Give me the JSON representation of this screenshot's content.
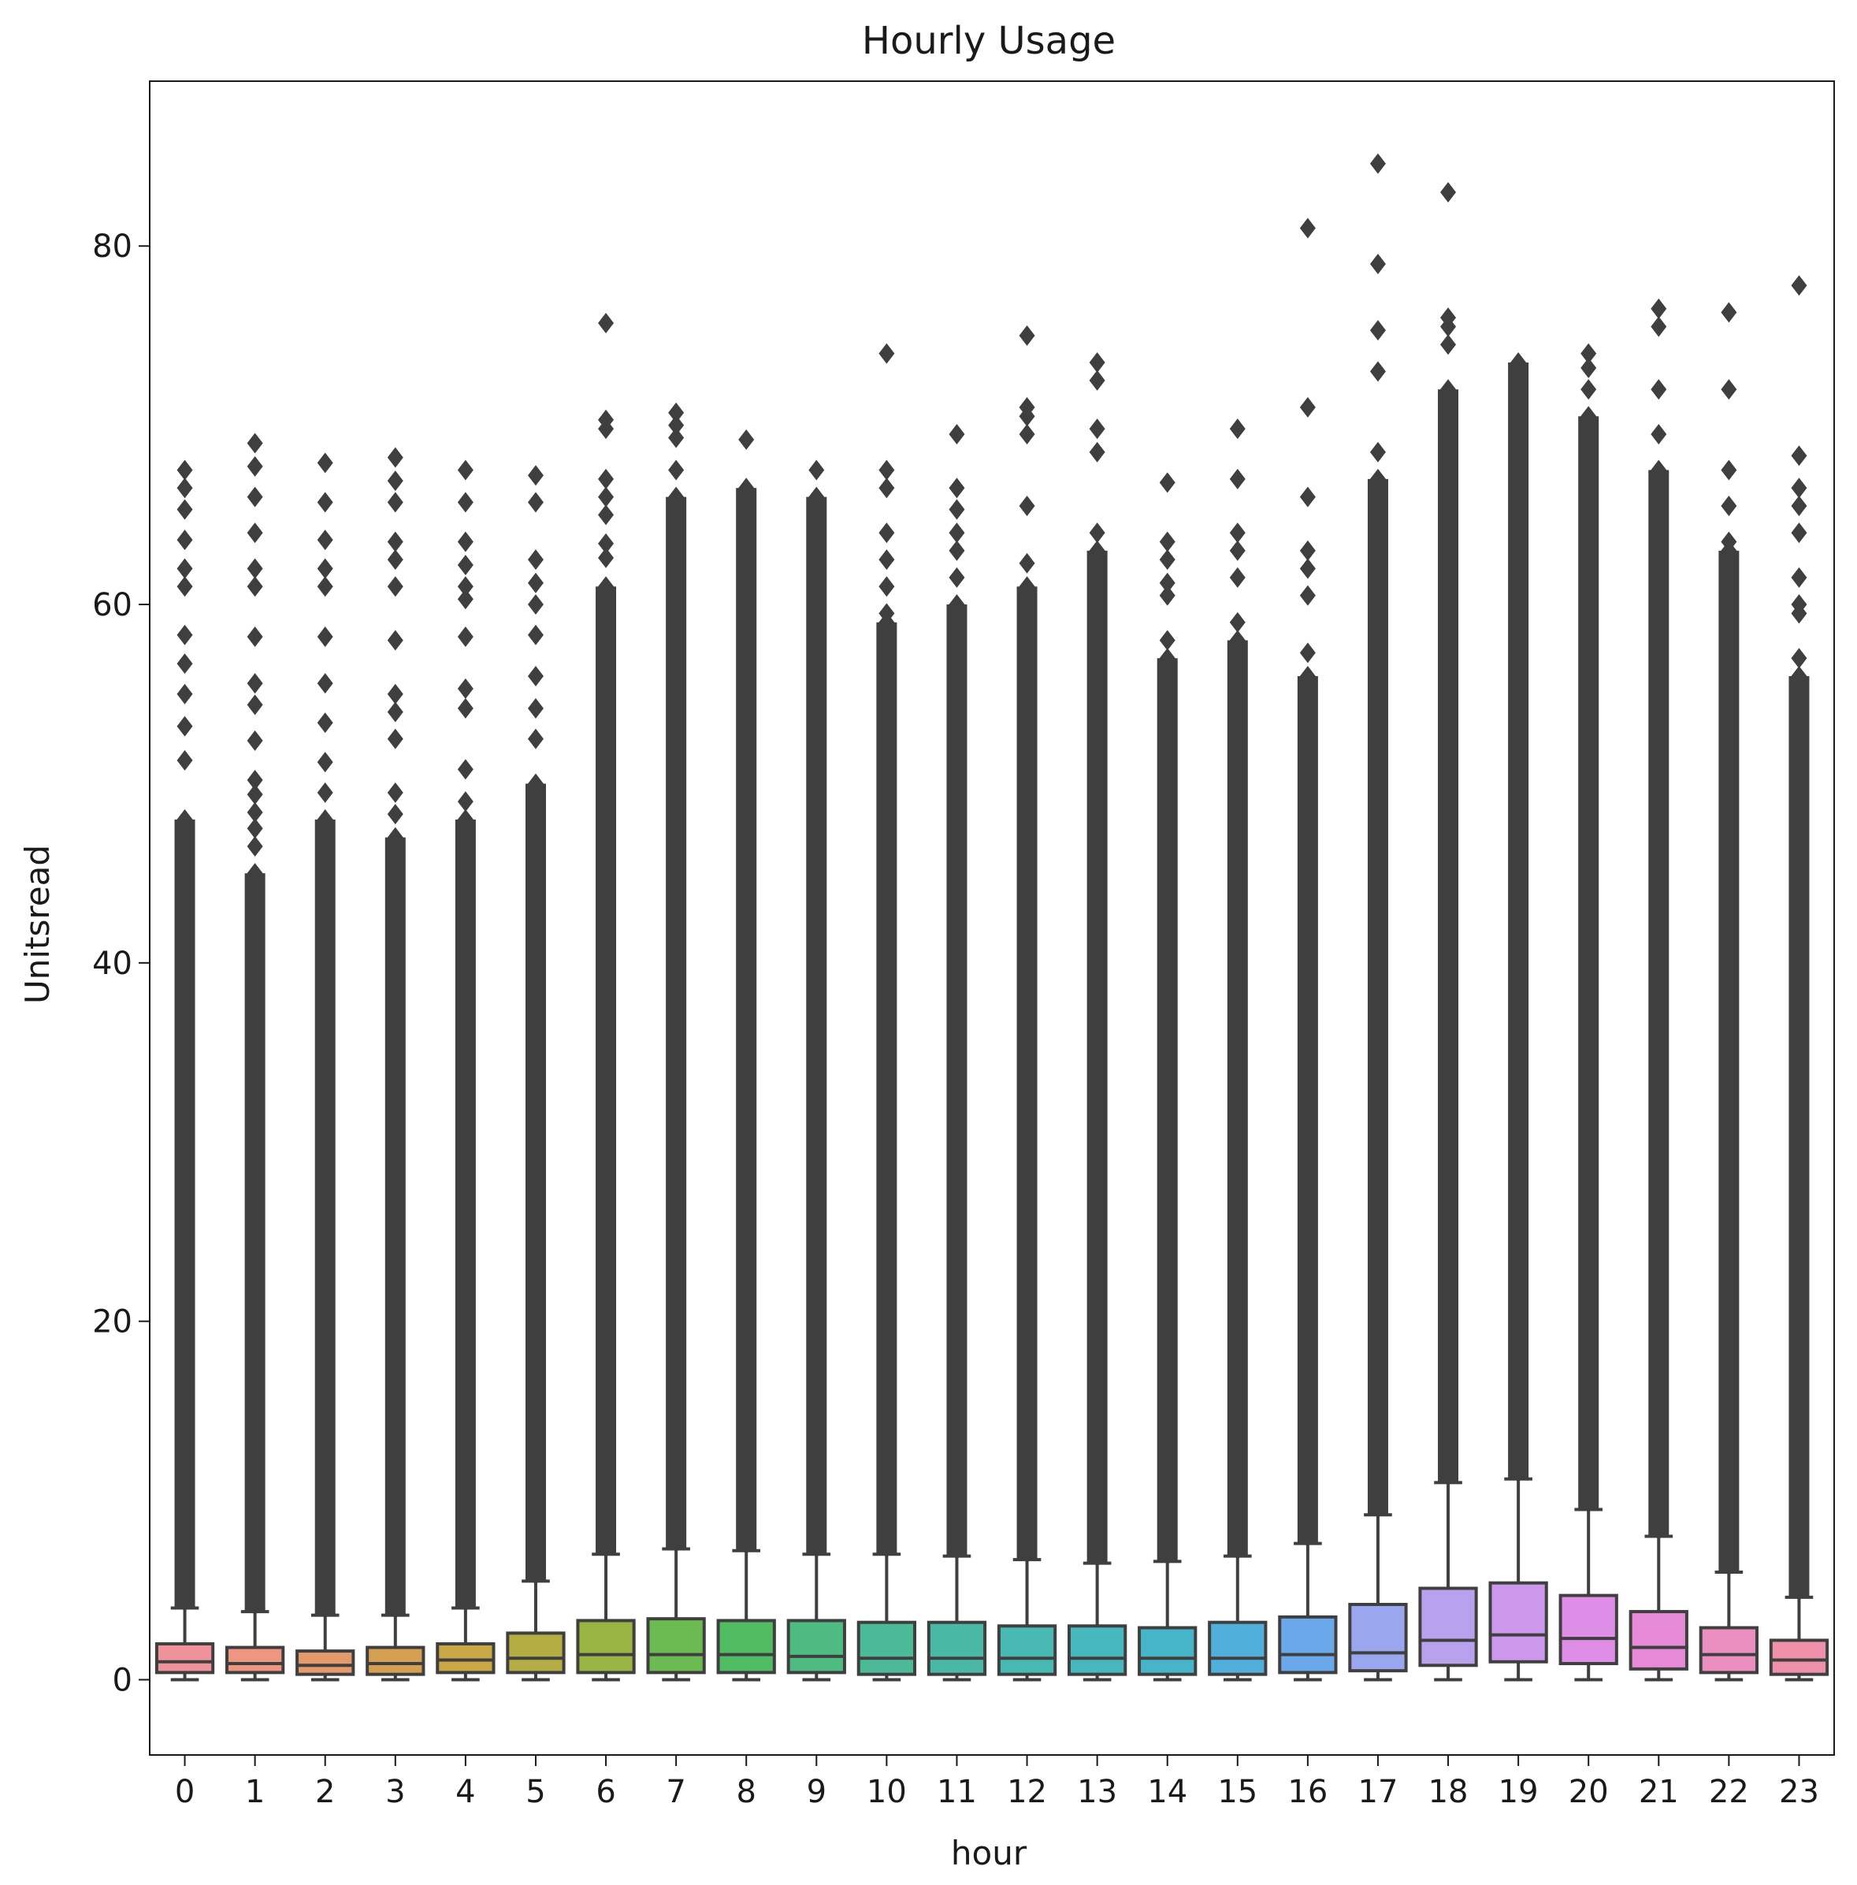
{
  "chart_data": {
    "type": "box",
    "title": "Hourly Usage",
    "xlabel": "hour",
    "ylabel": "Unitsread",
    "ylim": [
      -4.2,
      89.2
    ],
    "yticks": [
      0,
      20,
      40,
      60,
      80
    ],
    "categories": [
      "0",
      "1",
      "2",
      "3",
      "4",
      "5",
      "6",
      "7",
      "8",
      "9",
      "10",
      "11",
      "12",
      "13",
      "14",
      "15",
      "16",
      "17",
      "18",
      "19",
      "20",
      "21",
      "22",
      "23"
    ],
    "colors": [
      "#f0929a",
      "#ee9682",
      "#e49a6a",
      "#d6a052",
      "#c9a845",
      "#b4ad44",
      "#98b541",
      "#6cbb52",
      "#50bd62",
      "#4ebc80",
      "#4bbb97",
      "#49b9a6",
      "#47b8b2",
      "#45b7bd",
      "#46b5c8",
      "#51afdc",
      "#6aa8ea",
      "#9aa6ee",
      "#b8a2ee",
      "#cb98ec",
      "#de8ee6",
      "#e68ad8",
      "#eb8ec0",
      "#ef91aa"
    ],
    "box_stats": [
      {
        "hour": "0",
        "q1": 0.4,
        "median": 1.0,
        "q3": 2.0,
        "whisker_low": 0.0,
        "whisker_high": 4.0,
        "dense_top": 48.0,
        "outliers": [
          51.3,
          53.2,
          55.0,
          56.7,
          58.3,
          61.0,
          62.0,
          63.6,
          65.3,
          66.5,
          67.5
        ]
      },
      {
        "hour": "1",
        "q1": 0.4,
        "median": 0.9,
        "q3": 1.8,
        "whisker_low": 0.0,
        "whisker_high": 3.8,
        "dense_top": 45.0,
        "outliers": [
          46.5,
          47.5,
          48.4,
          49.4,
          50.2,
          52.4,
          54.4,
          55.6,
          58.2,
          61.0,
          62.0,
          64.0,
          66.0,
          67.7,
          69.0
        ]
      },
      {
        "hour": "2",
        "q1": 0.3,
        "median": 0.8,
        "q3": 1.6,
        "whisker_low": 0.0,
        "whisker_high": 3.6,
        "dense_top": 48.0,
        "outliers": [
          49.5,
          51.2,
          53.4,
          55.6,
          58.2,
          61.0,
          62.0,
          63.6,
          65.7,
          67.9
        ]
      },
      {
        "hour": "3",
        "q1": 0.3,
        "median": 0.9,
        "q3": 1.8,
        "whisker_low": 0.0,
        "whisker_high": 3.6,
        "dense_top": 47.0,
        "outliers": [
          48.3,
          49.5,
          52.5,
          54.0,
          55.0,
          58.0,
          61.0,
          62.5,
          63.5,
          65.7,
          66.9,
          68.2
        ]
      },
      {
        "hour": "4",
        "q1": 0.4,
        "median": 1.1,
        "q3": 2.0,
        "whisker_low": 0.0,
        "whisker_high": 4.0,
        "dense_top": 48.0,
        "outliers": [
          49.0,
          50.8,
          54.2,
          55.3,
          58.2,
          60.3,
          61.0,
          62.2,
          63.5,
          65.7,
          67.5
        ]
      },
      {
        "hour": "5",
        "q1": 0.4,
        "median": 1.2,
        "q3": 2.6,
        "whisker_low": 0.0,
        "whisker_high": 5.5,
        "dense_top": 50.0,
        "outliers": [
          52.5,
          54.2,
          56.0,
          58.3,
          60.0,
          61.2,
          62.5,
          65.7,
          67.2
        ]
      },
      {
        "hour": "6",
        "q1": 0.4,
        "median": 1.4,
        "q3": 3.3,
        "whisker_low": 0.0,
        "whisker_high": 7.0,
        "dense_top": 61.0,
        "outliers": [
          62.6,
          63.4,
          65.0,
          66.0,
          67.0,
          69.8,
          70.3,
          75.7
        ]
      },
      {
        "hour": "7",
        "q1": 0.4,
        "median": 1.4,
        "q3": 3.4,
        "whisker_low": 0.0,
        "whisker_high": 7.3,
        "dense_top": 66.0,
        "outliers": [
          67.5,
          69.3,
          70.0,
          70.7
        ]
      },
      {
        "hour": "8",
        "q1": 0.4,
        "median": 1.4,
        "q3": 3.3,
        "whisker_low": 0.0,
        "whisker_high": 7.2,
        "dense_top": 66.5,
        "outliers": [
          69.2
        ]
      },
      {
        "hour": "9",
        "q1": 0.4,
        "median": 1.3,
        "q3": 3.3,
        "whisker_low": 0.0,
        "whisker_high": 7.0,
        "dense_top": 66.0,
        "outliers": [
          67.5
        ]
      },
      {
        "hour": "10",
        "q1": 0.3,
        "median": 1.2,
        "q3": 3.2,
        "whisker_low": 0.0,
        "whisker_high": 7.0,
        "dense_top": 59.0,
        "outliers": [
          59.5,
          61.0,
          62.5,
          64.0,
          66.5,
          67.5,
          74.0
        ]
      },
      {
        "hour": "11",
        "q1": 0.3,
        "median": 1.2,
        "q3": 3.2,
        "whisker_low": 0.0,
        "whisker_high": 6.9,
        "dense_top": 60.0,
        "outliers": [
          61.5,
          63.0,
          64.0,
          65.3,
          66.5,
          69.5
        ]
      },
      {
        "hour": "12",
        "q1": 0.3,
        "median": 1.2,
        "q3": 3.0,
        "whisker_low": 0.0,
        "whisker_high": 6.7,
        "dense_top": 61.0,
        "outliers": [
          62.3,
          65.5,
          69.5,
          70.5,
          71.0,
          75.0
        ]
      },
      {
        "hour": "13",
        "q1": 0.3,
        "median": 1.2,
        "q3": 3.0,
        "whisker_low": 0.0,
        "whisker_high": 6.5,
        "dense_top": 63.0,
        "outliers": [
          64.0,
          68.5,
          69.8,
          72.5,
          73.5
        ]
      },
      {
        "hour": "14",
        "q1": 0.3,
        "median": 1.2,
        "q3": 2.9,
        "whisker_low": 0.0,
        "whisker_high": 6.6,
        "dense_top": 57.0,
        "outliers": [
          58.0,
          60.5,
          61.2,
          62.5,
          63.5,
          66.8
        ]
      },
      {
        "hour": "15",
        "q1": 0.3,
        "median": 1.2,
        "q3": 3.2,
        "whisker_low": 0.0,
        "whisker_high": 6.9,
        "dense_top": 58.0,
        "outliers": [
          59.0,
          61.5,
          63.0,
          64.0,
          67.0,
          69.8
        ]
      },
      {
        "hour": "16",
        "q1": 0.4,
        "median": 1.4,
        "q3": 3.5,
        "whisker_low": 0.0,
        "whisker_high": 7.6,
        "dense_top": 56.0,
        "outliers": [
          57.3,
          60.5,
          62.0,
          63.0,
          66.0,
          71.0,
          81.0
        ]
      },
      {
        "hour": "17",
        "q1": 0.5,
        "median": 1.5,
        "q3": 4.2,
        "whisker_low": 0.0,
        "whisker_high": 9.2,
        "dense_top": 67.0,
        "outliers": [
          68.5,
          73.0,
          75.3,
          79.0,
          84.6
        ]
      },
      {
        "hour": "18",
        "q1": 0.8,
        "median": 2.2,
        "q3": 5.1,
        "whisker_low": 0.0,
        "whisker_high": 11.0,
        "dense_top": 72.0,
        "outliers": [
          74.5,
          75.5,
          76.0,
          83.0
        ]
      },
      {
        "hour": "19",
        "q1": 1.0,
        "median": 2.5,
        "q3": 5.4,
        "whisker_low": 0.0,
        "whisker_high": 11.2,
        "dense_top": 73.5,
        "outliers": []
      },
      {
        "hour": "20",
        "q1": 0.9,
        "median": 2.3,
        "q3": 4.7,
        "whisker_low": 0.0,
        "whisker_high": 9.5,
        "dense_top": 70.5,
        "outliers": [
          72.0,
          73.2,
          74.0
        ]
      },
      {
        "hour": "21",
        "q1": 0.6,
        "median": 1.8,
        "q3": 3.8,
        "whisker_low": 0.0,
        "whisker_high": 8.0,
        "dense_top": 67.5,
        "outliers": [
          69.5,
          72.0,
          75.5,
          76.5
        ]
      },
      {
        "hour": "22",
        "q1": 0.4,
        "median": 1.4,
        "q3": 2.9,
        "whisker_low": 0.0,
        "whisker_high": 6.0,
        "dense_top": 63.0,
        "outliers": [
          63.5,
          65.5,
          67.5,
          72.0,
          76.3
        ]
      },
      {
        "hour": "23",
        "q1": 0.3,
        "median": 1.1,
        "q3": 2.2,
        "whisker_low": 0.0,
        "whisker_high": 4.6,
        "dense_top": 56.0,
        "outliers": [
          57.0,
          59.5,
          60.0,
          61.5,
          64.0,
          65.5,
          66.5,
          68.3,
          77.8
        ]
      }
    ]
  }
}
